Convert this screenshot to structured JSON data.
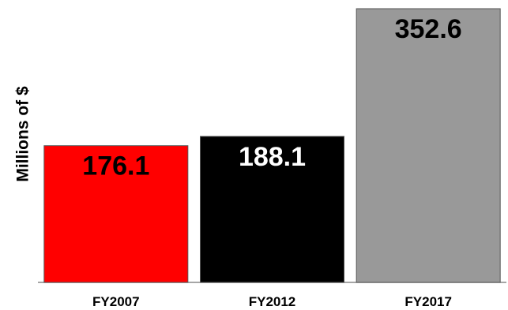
{
  "chart_data": {
    "type": "bar",
    "title": "",
    "xlabel": "",
    "ylabel": "Millions of $",
    "categories": [
      "FY2007",
      "FY2012",
      "FY2017"
    ],
    "values": [
      176.1,
      188.1,
      352.6
    ],
    "data_labels": [
      "176.1",
      "188.1",
      "352.6"
    ],
    "bar_colors": [
      "#ff0000",
      "#000000",
      "#999999"
    ],
    "label_colors": [
      "#000000",
      "#ffffff",
      "#000000"
    ],
    "ylim": [
      0,
      352.6
    ],
    "grid": false,
    "legend": "none"
  }
}
